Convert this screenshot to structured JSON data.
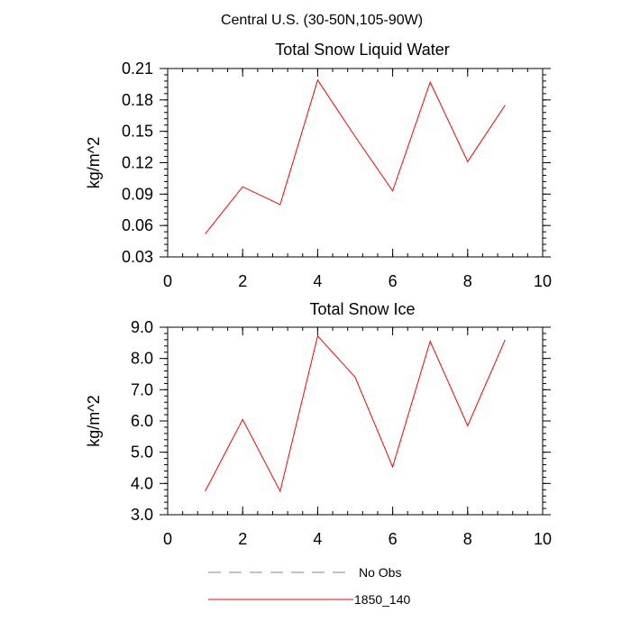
{
  "figure": {
    "main_title": "Central U.S. (30-50N,105-90W)"
  },
  "legend": [
    {
      "label": "No Obs",
      "color": "#7f7fb2",
      "dash": "dashed"
    },
    {
      "label": "1850_140",
      "color": "#ff0000",
      "dash": "solid"
    }
  ],
  "chart_data": [
    {
      "type": "line",
      "title": "Total Snow Liquid Water",
      "xlabel": "",
      "ylabel": "kg/m^2",
      "xlim": [
        0,
        10
      ],
      "ylim": [
        0.03,
        0.21
      ],
      "xticks": [
        0,
        2,
        4,
        6,
        8,
        10
      ],
      "xtick_labels": [
        "0",
        "2",
        "4",
        "6",
        "8",
        "10"
      ],
      "yticks": [
        0.03,
        0.06,
        0.09,
        0.12,
        0.15,
        0.18,
        0.21
      ],
      "ytick_labels": [
        "0.03",
        "0.06",
        "0.09",
        "0.12",
        "0.15",
        "0.18",
        "0.21"
      ],
      "grid": false,
      "series": [
        {
          "name": "1850_140",
          "color": "#ff0000",
          "x": [
            1,
            2,
            3,
            4,
            5,
            6,
            7,
            8,
            9
          ],
          "y": [
            0.052,
            0.097,
            0.08,
            0.199,
            0.145,
            0.093,
            0.197,
            0.121,
            0.175
          ]
        }
      ]
    },
    {
      "type": "line",
      "title": "Total Snow Ice",
      "xlabel": "",
      "ylabel": "kg/m^2",
      "xlim": [
        0,
        10
      ],
      "ylim": [
        3.0,
        9.0
      ],
      "xticks": [
        0,
        2,
        4,
        6,
        8,
        10
      ],
      "xtick_labels": [
        "0",
        "2",
        "4",
        "6",
        "8",
        "10"
      ],
      "yticks": [
        3.0,
        4.0,
        5.0,
        6.0,
        7.0,
        8.0,
        9.0
      ],
      "ytick_labels": [
        "3.0",
        "4.0",
        "5.0",
        "6.0",
        "7.0",
        "8.0",
        "9.0"
      ],
      "grid": false,
      "series": [
        {
          "name": "1850_140",
          "color": "#ff0000",
          "x": [
            1,
            2,
            3,
            4,
            5,
            6,
            7,
            8,
            9
          ],
          "y": [
            3.75,
            6.05,
            3.75,
            8.72,
            7.4,
            4.53,
            8.55,
            5.85,
            8.6
          ]
        }
      ]
    }
  ]
}
